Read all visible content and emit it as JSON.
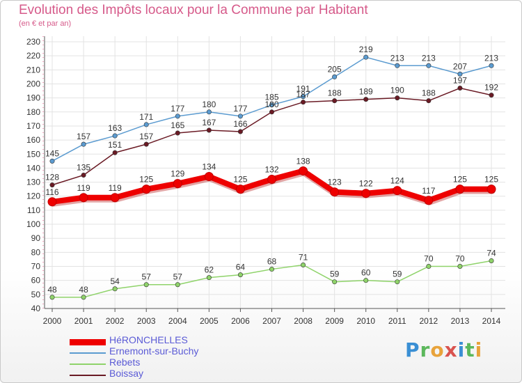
{
  "header": {
    "title": "Evolution des Impôts locaux pour la Commune par Habitant",
    "subtitle": "(en € et par an)"
  },
  "logo": {
    "letters": [
      "P",
      "r",
      "o",
      "x",
      "i",
      "t",
      "i"
    ]
  },
  "chart_data": {
    "type": "line",
    "title": "Evolution des Impôts locaux pour la Commune par Habitant",
    "subtitle": "(en € et par an)",
    "xlabel": "",
    "ylabel": "",
    "ylim": [
      40,
      230
    ],
    "yticks": [
      40,
      50,
      60,
      70,
      80,
      90,
      100,
      110,
      120,
      130,
      140,
      150,
      160,
      170,
      180,
      190,
      200,
      210,
      220,
      230
    ],
    "x": [
      "2000",
      "2001",
      "2002",
      "2003",
      "2004",
      "2005",
      "2006",
      "2007",
      "2008",
      "2009",
      "2010",
      "2011",
      "2012",
      "2013",
      "2014"
    ],
    "grid": true,
    "legend_position": "bottom-left",
    "series": [
      {
        "name": "HéRONCHELLES",
        "color": "#ee0000",
        "values": [
          116,
          119,
          119,
          125,
          129,
          134,
          125,
          132,
          138,
          123,
          122,
          124,
          117,
          125,
          125
        ]
      },
      {
        "name": "Ernemont-sur-Buchy",
        "color": "#5b9bd0",
        "values": [
          145,
          157,
          163,
          171,
          177,
          180,
          177,
          185,
          191,
          205,
          219,
          213,
          213,
          207,
          213
        ]
      },
      {
        "name": "Rebets",
        "color": "#8fd36a",
        "values": [
          48,
          48,
          54,
          57,
          57,
          62,
          64,
          68,
          71,
          59,
          60,
          59,
          70,
          70,
          74
        ]
      },
      {
        "name": "Boissay",
        "color": "#6a1a24",
        "values": [
          128,
          135,
          151,
          157,
          165,
          167,
          166,
          180,
          187,
          188,
          189,
          190,
          188,
          197,
          192
        ]
      }
    ]
  }
}
